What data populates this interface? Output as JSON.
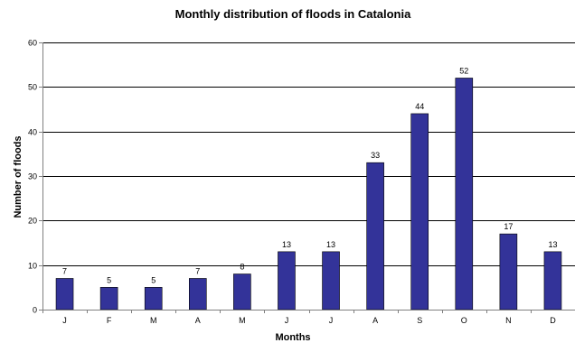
{
  "chart_data": {
    "type": "bar",
    "title": "Monthly distribution of floods in Catalonia",
    "xlabel": "Months",
    "ylabel": "Number of floods",
    "categories": [
      "J",
      "F",
      "M",
      "A",
      "M",
      "J",
      "J",
      "A",
      "S",
      "O",
      "N",
      "D"
    ],
    "values": [
      7,
      5,
      5,
      7,
      8,
      13,
      13,
      33,
      44,
      52,
      17,
      13
    ],
    "data_labels": [
      "7",
      "5",
      "5",
      "7",
      "8",
      "13",
      "13",
      "33",
      "44",
      "52",
      "17",
      "13"
    ],
    "y_ticks": [
      0,
      10,
      20,
      30,
      40,
      50,
      60
    ],
    "y_tick_labels": [
      "0",
      "10",
      "20",
      "30",
      "40",
      "50",
      "60"
    ],
    "ylim": [
      0,
      60
    ],
    "grid": true,
    "legend": "none",
    "colors": {
      "bar_fill": "#333399",
      "bar_stroke": "#000000",
      "grid": "#000000",
      "axis": "#808080"
    }
  }
}
